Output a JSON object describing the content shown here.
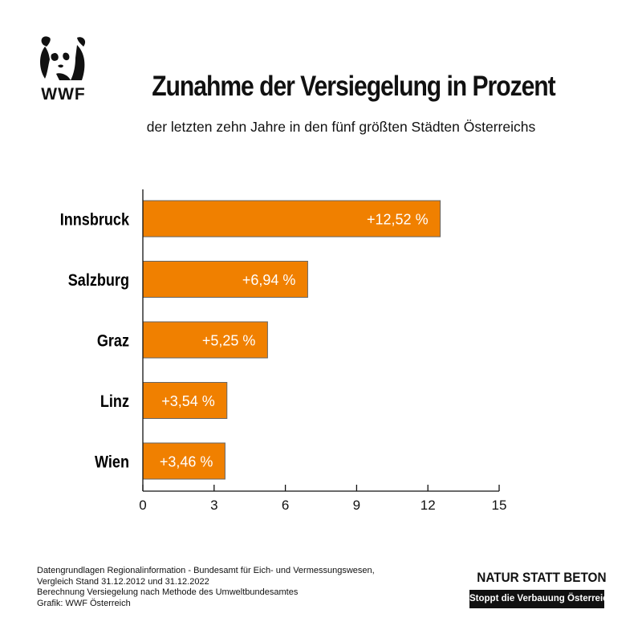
{
  "header": {
    "logo_text": "WWF",
    "title": "Zunahme der Versiegelung in Prozent",
    "subtitle": "der letzten zehn Jahre in den fünf größten Städten Österreichs"
  },
  "chart_data": {
    "type": "bar",
    "orientation": "horizontal",
    "categories": [
      "Innsbruck",
      "Salzburg",
      "Graz",
      "Linz",
      "Wien"
    ],
    "values": [
      12.52,
      6.94,
      5.25,
      3.54,
      3.46
    ],
    "value_labels": [
      "+12,52 %",
      "+6,94 %",
      "+5,25 %",
      "+3,54 %",
      "+3,46 %"
    ],
    "title": "Zunahme der Versiegelung in Prozent",
    "xlabel": "",
    "ylabel": "",
    "xlim": [
      0,
      15
    ],
    "xticks": [
      0,
      3,
      6,
      9,
      12,
      15
    ],
    "xtick_labels": [
      "0",
      "3",
      "6",
      "9",
      "12",
      "15"
    ],
    "grid": false,
    "bar_color": "#f08000",
    "bar_edge_color": "#666666"
  },
  "footer": {
    "source_lines": [
      "Datengrundlagen Regionalinformation - Bundesamt für Eich- und Vermessungswesen,",
      "Vergleich Stand 31.12.2012 und 31.12.2022",
      "Berechnung Versiegelung nach Methode des Umweltbundesamtes",
      "Grafik: WWF Österreich"
    ],
    "slogan": "NATUR STATT BETON",
    "claim": "Stoppt die Verbauung Österreichs!"
  },
  "colors": {
    "accent": "#f08000",
    "text": "#111111",
    "background": "#ffffff"
  }
}
